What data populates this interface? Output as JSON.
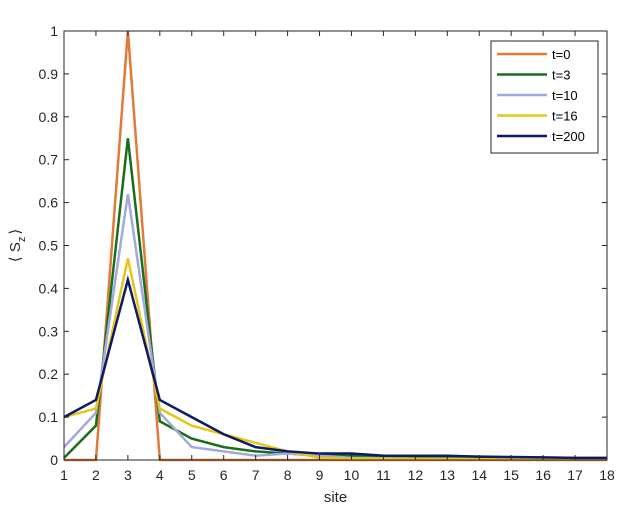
{
  "chart_data": {
    "type": "line",
    "xlabel": "site",
    "ylabel": "⟨ S",
    "ylabel_sub": "z",
    "ylabel_close": "⟩",
    "xlim": [
      1,
      18
    ],
    "ylim": [
      0,
      1
    ],
    "x_ticks": [
      1,
      2,
      3,
      4,
      5,
      6,
      7,
      8,
      9,
      10,
      11,
      12,
      13,
      14,
      15,
      16,
      17,
      18
    ],
    "y_ticks": [
      0,
      0.1,
      0.2,
      0.3,
      0.4,
      0.5,
      0.6,
      0.7,
      0.8,
      0.9,
      1
    ],
    "y_tick_labels": [
      "0",
      "0.1",
      "0.2",
      "0.3",
      "0.4",
      "0.5",
      "0.6",
      "0.7",
      "0.8",
      "0.9",
      "1"
    ],
    "grid": false,
    "legend_position": "top-right",
    "x": [
      1,
      2,
      3,
      4,
      5,
      6,
      7,
      8,
      9,
      10,
      11,
      12,
      13,
      14,
      15,
      16,
      17,
      18
    ],
    "series": [
      {
        "name": "t=0",
        "color": "#e07b39",
        "values": [
          0,
          0,
          1,
          0,
          0,
          0,
          0,
          0,
          0,
          0,
          0,
          0,
          0,
          0,
          0,
          0,
          0,
          0
        ]
      },
      {
        "name": "t=3",
        "color": "#1a6e1a",
        "values": [
          0.005,
          0.08,
          0.75,
          0.09,
          0.05,
          0.03,
          0.02,
          0.015,
          0.01,
          0.01,
          0.008,
          0.007,
          0.006,
          0.005,
          0.004,
          0.004,
          0.003,
          0.003
        ]
      },
      {
        "name": "t=10",
        "color": "#a3a8dd",
        "values": [
          0.03,
          0.11,
          0.62,
          0.11,
          0.03,
          0.02,
          0.01,
          0.015,
          0.01,
          0.005,
          0.004,
          0.003,
          0.003,
          0.002,
          0.002,
          0.002,
          0.002,
          0.002
        ]
      },
      {
        "name": "t=16",
        "color": "#e6c619",
        "values": [
          0.1,
          0.12,
          0.47,
          0.12,
          0.08,
          0.06,
          0.04,
          0.02,
          0.005,
          0.003,
          0.003,
          0.003,
          0.002,
          0.002,
          0.002,
          0.002,
          0.002,
          0.002
        ]
      },
      {
        "name": "t=200",
        "color": "#0d1a66",
        "values": [
          0.1,
          0.14,
          0.42,
          0.14,
          0.1,
          0.06,
          0.03,
          0.02,
          0.015,
          0.015,
          0.01,
          0.01,
          0.01,
          0.008,
          0.007,
          0.006,
          0.005,
          0.005
        ]
      }
    ]
  }
}
